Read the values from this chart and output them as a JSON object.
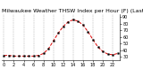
{
  "title": "Milwaukee Weather THSW Index per Hour (F) (Last 24 Hours)",
  "hours": [
    0,
    1,
    2,
    3,
    4,
    5,
    6,
    7,
    8,
    9,
    10,
    11,
    12,
    13,
    14,
    15,
    16,
    17,
    18,
    19,
    20,
    21,
    22,
    23
  ],
  "values": [
    32,
    32,
    31,
    31,
    31,
    31,
    31,
    32,
    35,
    42,
    54,
    66,
    76,
    83,
    86,
    84,
    78,
    68,
    56,
    45,
    38,
    34,
    33,
    35
  ],
  "line_color": "#dd0000",
  "marker_color": "#000000",
  "background_color": "#ffffff",
  "grid_color": "#999999",
  "ylim": [
    25,
    95
  ],
  "ytick_values": [
    30,
    40,
    50,
    60,
    70,
    80,
    90
  ],
  "ytick_labels": [
    "30",
    "40",
    "50",
    "60",
    "70",
    "80",
    "90"
  ],
  "title_fontsize": 4.5,
  "tick_fontsize": 3.5,
  "line_width": 0.7,
  "marker_size": 1.2
}
